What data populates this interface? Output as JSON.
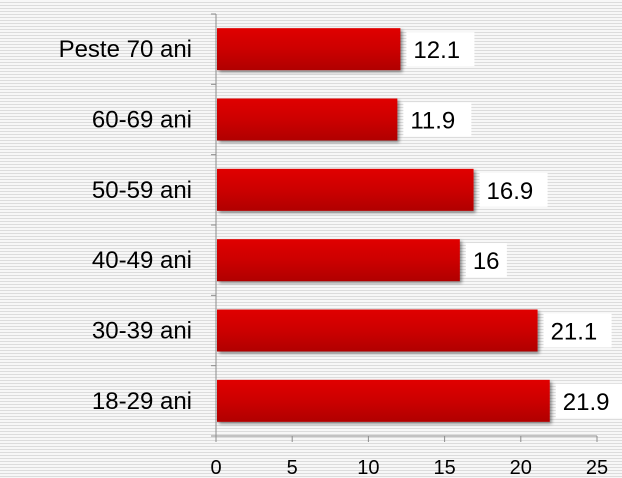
{
  "chart_data": {
    "type": "bar",
    "orientation": "horizontal",
    "categories": [
      "Peste 70 ani",
      "60-69 ani",
      "50-59 ani",
      "40-49 ani",
      "30-39 ani",
      "18-29 ani"
    ],
    "values": [
      12.1,
      11.9,
      16.9,
      16,
      21.1,
      21.9
    ],
    "value_labels": [
      "12.1",
      "11.9",
      "16.9",
      "16",
      "21.1",
      "21.9"
    ],
    "xlim": [
      0,
      25
    ],
    "x_ticks": [
      "0",
      "5",
      "10",
      "15",
      "20",
      "25"
    ],
    "bar_color": "#cc0000",
    "grid": false,
    "legend": "none"
  }
}
